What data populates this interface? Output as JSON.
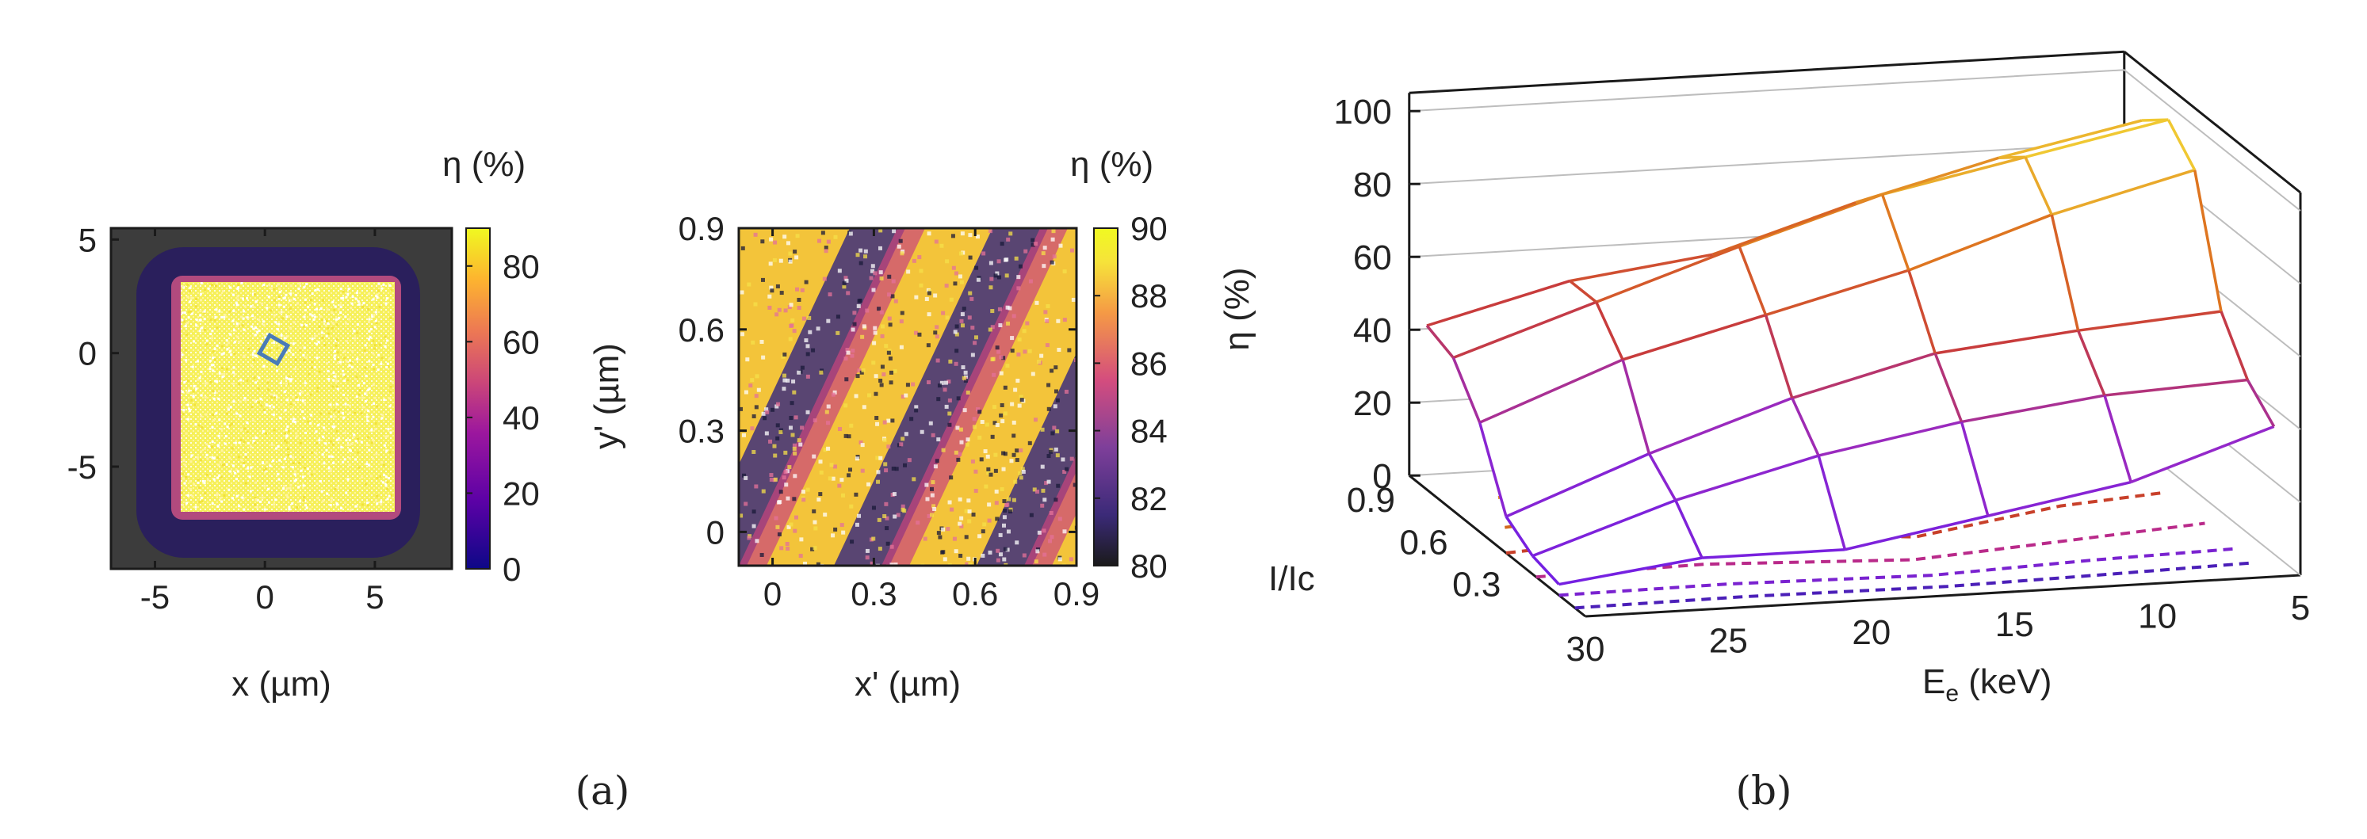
{
  "chart_data": [
    {
      "id": "a-left",
      "type": "heatmap",
      "title": "",
      "xlabel": "x (µm)",
      "ylabel": "",
      "x_ticks": [
        "-5",
        "0",
        "5"
      ],
      "x_tick_values": [
        -5,
        0,
        5
      ],
      "y_ticks": [
        "5",
        "0",
        "-5"
      ],
      "y_tick_values": [
        5,
        0,
        -5
      ],
      "xlim": [
        -7,
        8.5
      ],
      "ylim": [
        -9.5,
        5.5
      ],
      "square_region": {
        "x": [
          -3.5,
          6
        ],
        "y": [
          -7.2,
          3
        ]
      },
      "selection_center": [
        0.5,
        0.2
      ],
      "colorbar": {
        "label": "η (%)",
        "ticks": [
          "80",
          "60",
          "40",
          "20",
          "0"
        ],
        "range": [
          0,
          90
        ]
      }
    },
    {
      "id": "a-right",
      "type": "heatmap",
      "title": "",
      "xlabel": "x' (µm)",
      "ylabel": "y' (µm)",
      "x_ticks": [
        "0",
        "0.3",
        "0.6",
        "0.9"
      ],
      "x_tick_values": [
        0,
        0.3,
        0.6,
        0.9
      ],
      "y_ticks": [
        "0.9",
        "0.6",
        "0.3",
        "0"
      ],
      "y_tick_values": [
        0.9,
        0.6,
        0.3,
        0
      ],
      "xlim": [
        -0.1,
        0.9
      ],
      "ylim": [
        -0.1,
        0.9
      ],
      "colorbar": {
        "label": "η (%)",
        "ticks": [
          "90",
          "88",
          "86",
          "84",
          "82",
          "80"
        ],
        "range": [
          80,
          90
        ]
      }
    },
    {
      "id": "b",
      "type": "surface",
      "title": "",
      "xlabel": "Ee (keV)",
      "ylabel": "I/Ic",
      "zlabel": "η (%)",
      "x_ticks": [
        "30",
        "25",
        "20",
        "15",
        "10",
        "5"
      ],
      "y_ticks": [
        "0.9",
        "0.6",
        "0.3"
      ],
      "z_ticks": [
        "100",
        "80",
        "60",
        "40",
        "20",
        "0"
      ],
      "zlim": [
        0,
        100
      ],
      "energies_keV": [
        30,
        25,
        20,
        15,
        10,
        5
      ],
      "currents": [
        0.15,
        0.3,
        0.45,
        0.6,
        0.75,
        0.9
      ],
      "efficiency": [
        [
          3,
          8,
          8,
          15,
          22,
          35
        ],
        [
          5,
          18,
          28,
          35,
          40,
          42
        ],
        [
          10,
          25,
          38,
          48,
          52,
          55
        ],
        [
          30,
          45,
          55,
          65,
          78,
          88
        ],
        [
          42,
          55,
          68,
          80,
          88,
          96
        ],
        [
          45,
          55,
          60,
          72,
          82,
          90
        ]
      ],
      "contour_legend": []
    }
  ],
  "labels": {
    "panel_a": "(a)",
    "panel_b": "(b)",
    "eta_unit": "η (%)",
    "ee_main": "E",
    "ee_sub": "e",
    "ee_rest": " (keV)"
  },
  "colors": {
    "low": "#0d0887",
    "mid": "#cc4778",
    "high": "#f0f921",
    "background_dark": "#3a3a3a",
    "frame": "#1a1a1a",
    "selection": "#4a7bb7"
  }
}
